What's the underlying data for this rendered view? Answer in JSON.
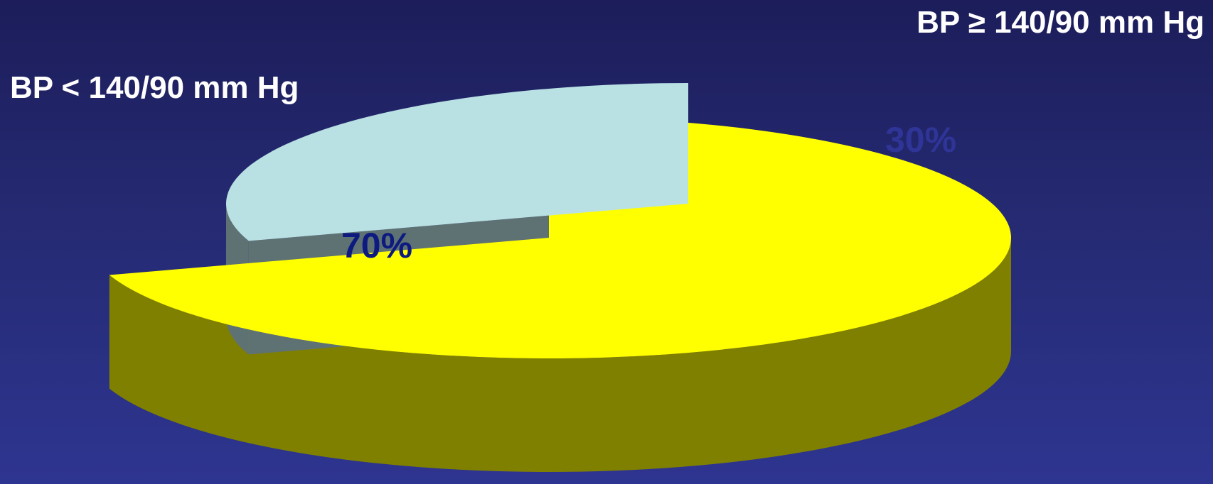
{
  "chart_data": {
    "type": "pie",
    "title": "",
    "slices": [
      {
        "label": "BP < 140/90 mm Hg",
        "value": 70,
        "value_label": "70%",
        "top_color": "#ffff00",
        "side_color": "#808000",
        "text_color": "#0d1a80"
      },
      {
        "label": "BP ≥ 140/90 mm Hg",
        "value": 30,
        "value_label": "30%",
        "top_color": "#b9e1e4",
        "side_color": "#5f7273",
        "text_color": "#2f3597"
      }
    ],
    "exploded": "BP ≥ 140/90 mm Hg",
    "style": "3d"
  }
}
